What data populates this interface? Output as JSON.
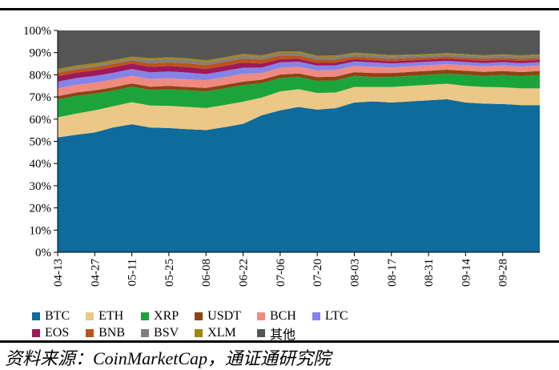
{
  "header": {
    "fragment": "（ ）"
  },
  "source_note": "资料来源：CoinMarketCap，通证通研究院",
  "chart_data": {
    "type": "area",
    "stacked": true,
    "y_tick_labels": [
      "0%",
      "10%",
      "20%",
      "30%",
      "40%",
      "50%",
      "60%",
      "70%",
      "80%",
      "90%",
      "100%"
    ],
    "ylim": [
      0,
      100
    ],
    "x_tick_labels": [
      "04-13",
      "04-27",
      "05-11",
      "05-25",
      "06-08",
      "06-22",
      "07-06",
      "07-20",
      "08-03",
      "08-17",
      "08-31",
      "09-14",
      "09-28"
    ],
    "x": [
      "04-13",
      "04-20",
      "04-27",
      "05-04",
      "05-11",
      "05-18",
      "05-25",
      "06-01",
      "06-08",
      "06-15",
      "06-22",
      "06-29",
      "07-06",
      "07-13",
      "07-20",
      "07-27",
      "08-03",
      "08-10",
      "08-17",
      "08-24",
      "08-31",
      "09-07",
      "09-14",
      "09-21",
      "09-28",
      "10-05",
      "10-11"
    ],
    "legend_position": "bottom",
    "series": [
      {
        "name": "BTC",
        "color": "#0f6b9c",
        "values": [
          51.5,
          53,
          54,
          56,
          58,
          56.5,
          56,
          55.5,
          55.5,
          56.5,
          58,
          62,
          64,
          65.5,
          64.5,
          65,
          67.5,
          68,
          67.5,
          68,
          68.5,
          69,
          67.5,
          67,
          66.5,
          66,
          66
        ]
      },
      {
        "name": "ETH",
        "color": "#ecc886",
        "values": [
          9,
          9.5,
          10,
          9.5,
          10,
          10,
          10,
          10,
          10,
          10,
          10,
          8,
          8.5,
          8,
          7.5,
          7,
          7,
          6.5,
          7,
          7,
          7,
          7,
          7.5,
          7.5,
          7.5,
          7.5,
          7.5
        ]
      },
      {
        "name": "XRP",
        "color": "#1ca43c",
        "values": [
          8,
          8,
          7.5,
          7,
          7,
          7,
          7.5,
          7.5,
          7.5,
          7.5,
          7.5,
          6.5,
          6,
          5.5,
          5.5,
          5.5,
          5,
          4.5,
          4.5,
          4.5,
          4.5,
          4.5,
          5,
          5,
          5.5,
          5.5,
          6
        ]
      },
      {
        "name": "USDT",
        "color": "#8b4513",
        "values": [
          1.5,
          1.5,
          1.5,
          1.5,
          1.5,
          1.5,
          1.5,
          1.5,
          1.6,
          1.6,
          1.6,
          1.6,
          1.6,
          1.6,
          1.7,
          1.7,
          1.7,
          1.8,
          1.8,
          1.8,
          1.8,
          1.8,
          1.8,
          1.8,
          1.8,
          1.8,
          1.8
        ]
      },
      {
        "name": "BCH",
        "color": "#f08a80",
        "values": [
          3.5,
          3.5,
          3.5,
          3.5,
          3.5,
          3.5,
          3.5,
          3.5,
          3.5,
          3.5,
          3.5,
          3,
          3,
          3,
          3,
          3,
          2.8,
          2.8,
          2.5,
          2.5,
          2.5,
          2.5,
          2.5,
          2.5,
          2.5,
          2.5,
          2.5
        ]
      },
      {
        "name": "LTC",
        "color": "#8484e8",
        "values": [
          3,
          3,
          3,
          3,
          3,
          3,
          3,
          3,
          2.8,
          2.8,
          2.8,
          2.5,
          2.5,
          2.3,
          2.2,
          2.1,
          2,
          2,
          1.8,
          1.7,
          1.6,
          1.5,
          1.5,
          1.5,
          1.5,
          1.5,
          1.5
        ]
      },
      {
        "name": "EOS",
        "color": "#a0185a",
        "values": [
          2.5,
          2.5,
          2.5,
          2.5,
          2.5,
          2.5,
          2.5,
          2.5,
          2.3,
          2.3,
          2.3,
          1.8,
          1.5,
          1.3,
          1.2,
          1.2,
          1.1,
          1,
          1,
          1,
          1,
          1,
          1,
          1,
          1,
          1,
          1
        ]
      },
      {
        "name": "BNB",
        "color": "#b9541a",
        "values": [
          1.5,
          1.5,
          1.5,
          1.5,
          1.5,
          1.6,
          1.6,
          1.7,
          1.8,
          1.8,
          1.8,
          1.8,
          1.6,
          1.5,
          1.5,
          1.4,
          1.2,
          1.2,
          1.1,
          1.1,
          1,
          1,
          1,
          1,
          1,
          1,
          1
        ]
      },
      {
        "name": "BSV",
        "color": "#7f7f7f",
        "values": [
          0.8,
          0.8,
          0.8,
          0.8,
          0.8,
          1.5,
          1.5,
          1.5,
          1.3,
          1.3,
          1.3,
          1.2,
          1.2,
          1.2,
          1.2,
          1.2,
          1.1,
          1.1,
          1.1,
          1,
          1,
          1,
          1,
          1,
          1,
          1,
          1
        ]
      },
      {
        "name": "XLM",
        "color": "#a38410",
        "values": [
          0.9,
          0.9,
          0.9,
          0.9,
          0.8,
          0.8,
          0.8,
          0.8,
          0.8,
          0.8,
          0.8,
          0.7,
          0.7,
          0.7,
          0.6,
          0.6,
          0.6,
          0.6,
          0.6,
          0.5,
          0.5,
          0.5,
          0.5,
          0.5,
          0.5,
          0.5,
          0.5
        ]
      },
      {
        "name": "其他",
        "color": "#555555",
        "values": [
          17.3,
          15.8,
          14.8,
          13.3,
          11.9,
          12.6,
          12.1,
          12.5,
          13.6,
          12.1,
          10.6,
          11.3,
          9.4,
          9.4,
          11.4,
          11.3,
          10,
          10.5,
          11.1,
          10.9,
          10.6,
          10.2,
          10.7,
          11.2,
          10.7,
          11.2,
          10.7
        ]
      }
    ]
  }
}
